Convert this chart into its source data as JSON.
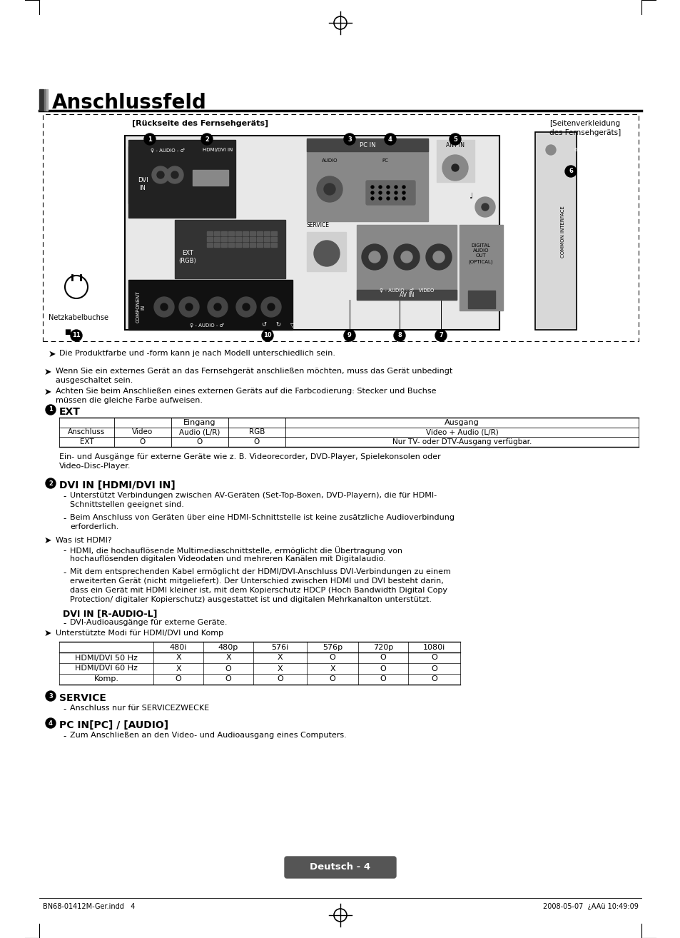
{
  "title": "Anschlussfeld",
  "bg_color": "#ffffff",
  "page_label": "Deutsch - 4",
  "footer_left": "BN68-01412M-Ger.indd   4",
  "footer_right": "2008-05-07  ¿AAü 10:49:09",
  "diagram_label_left": "[Rückseite des Fernsehgeräts]",
  "diagram_label_right": "[Seitenverkleidung\ndes Fernsehgeräts]",
  "note1": "Die Produktfarbe und -form kann je nach Modell unterschiedlich sein.",
  "bullet1": "Wenn Sie ein externes Gerät an das Fernsehgerät anschließen möchten, muss das Gerät unbedingt\nausgeschaltet sein.",
  "bullet2": "Achten Sie beim Anschließen eines externen Geräts auf die Farbcodierung: Stecker und Buchse\nmüssen die gleiche Farbe aufweisen.",
  "section1_head": "EXT",
  "table1_row": [
    "EXT",
    "O",
    "O",
    "O",
    "Nur TV- oder DTV-Ausgang verfügbar."
  ],
  "section1_note": "Ein- und Ausgänge für externe Geräte wie z. B. Videorecorder, DVD-Player, Spielekonsolen oder\nVideo-Disc-Player.",
  "section2_head": "DVI IN [HDMI/DVI IN]",
  "section2_bullets": [
    "Unterstützt Verbindungen zwischen AV-Geräten (Set-Top-Boxen, DVD-Playern), die für HDMI-\nSchnittstellen geeignet sind.",
    "Beim Anschluss von Geräten über eine HDMI-Schnittstelle ist keine zusätzliche Audioverbindung\nerforderlich."
  ],
  "section2_note": "Was ist HDMI?",
  "section2_bullets2": [
    "HDMI, die hochauflösende Multimediaschnittstelle, ermöglicht die Übertragung von\nhochauflösenden digitalen Videodaten und mehreren Kanälen mit Digitalaudio.",
    "Mit dem entsprechenden Kabel ermöglicht der HDMI/DVI-Anschluss DVI-Verbindungen zu einem\nerweiterten Gerät (nicht mitgeliefert). Der Unterschied zwischen HDMI und DVI besteht darin,\ndass ein Gerät mit HDMI kleiner ist, mit dem Kopierschutz HDCP (Hoch Bandwidth Digital Copy\nProtection/ digitaler Kopierschutz) ausgestattet ist und digitalen Mehrkanalton unterstützt."
  ],
  "section2b_head": "DVI IN [R-AUDIO-L]",
  "section2b_bullets": [
    "DVI-Audioausgänge für externe Geräte."
  ],
  "section2b_note": "Unterstützte Modi für HDMI/DVI und Komp",
  "table2_cols": [
    "",
    "480i",
    "480p",
    "576i",
    "576p",
    "720p",
    "1080i"
  ],
  "table2_rows": [
    [
      "HDMI/DVI 50 Hz",
      "X",
      "X",
      "X",
      "O",
      "O",
      "O"
    ],
    [
      "HDMI/DVI 60 Hz",
      "X",
      "O",
      "X",
      "X",
      "O",
      "O"
    ],
    [
      "Komp.",
      "O",
      "O",
      "O",
      "O",
      "O",
      "O"
    ]
  ],
  "section3_head": "SERVICE",
  "section3_bullets": [
    "Anschluss nur für SERVICEZWECKE"
  ],
  "section4_head": "PC IN[PC] / [AUDIO]",
  "section4_bullets": [
    "Zum Anschließen an den Video- und Audioausgang eines Computers."
  ]
}
